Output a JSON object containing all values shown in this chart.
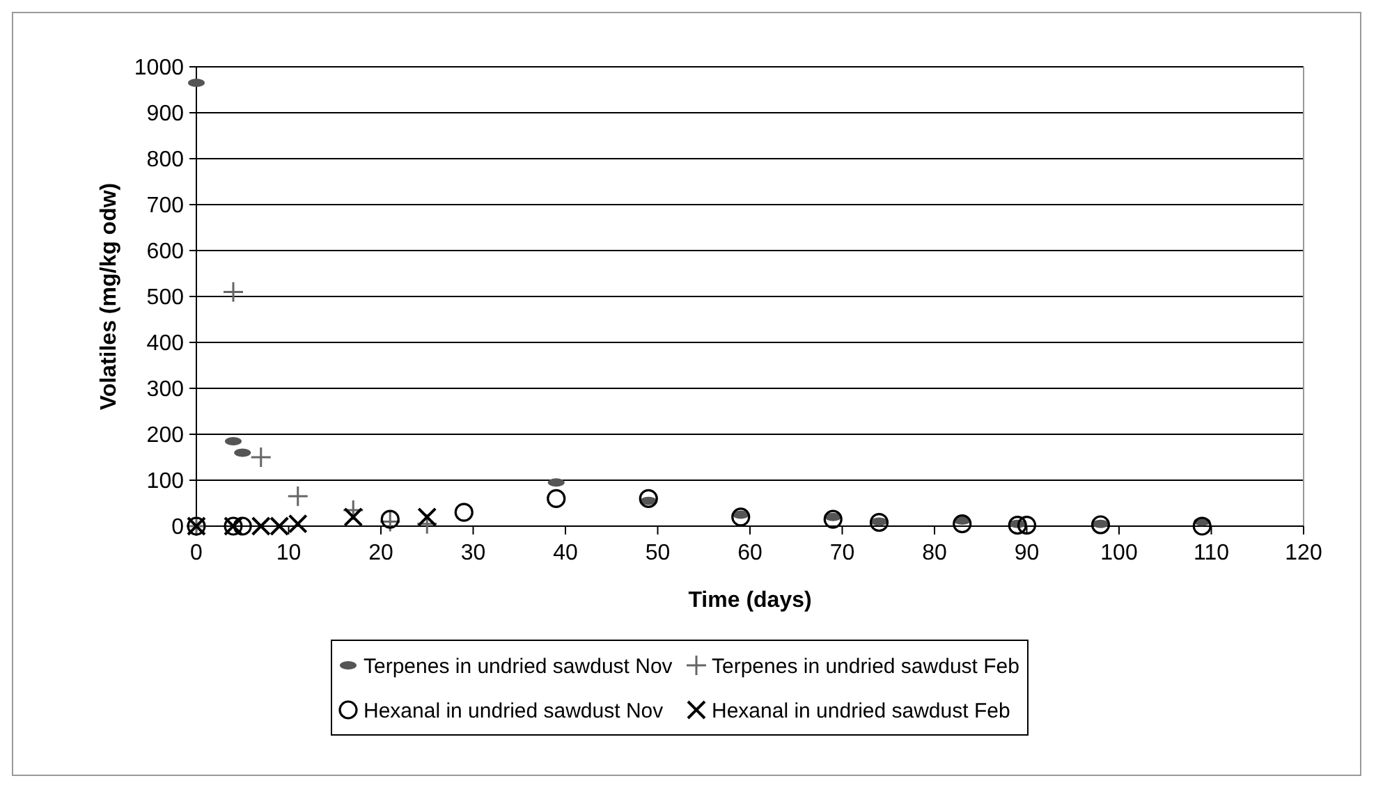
{
  "chart_data": {
    "type": "scatter",
    "xlabel": "Time (days)",
    "ylabel": "Volatiles (mg/kg odw)",
    "xlim": [
      0,
      120
    ],
    "xticks": [
      0,
      10,
      20,
      30,
      40,
      50,
      60,
      70,
      80,
      90,
      100,
      110,
      120
    ],
    "ylim": [
      0,
      1000
    ],
    "yticks": [
      0,
      100,
      200,
      300,
      400,
      500,
      600,
      700,
      800,
      900,
      1000
    ],
    "grid": "y",
    "legend": "bottom",
    "series": [
      {
        "name": "Terpenes in undried sawdust Nov",
        "color": "#555555",
        "x": [
          0,
          4,
          5,
          39,
          49,
          59,
          69,
          74,
          83,
          89,
          98,
          109
        ],
        "values": [
          965,
          185,
          160,
          95,
          55,
          25,
          20,
          10,
          12,
          5,
          5,
          10
        ]
      },
      {
        "name": "Terpenes in undried sawdust Feb",
        "color": "#666666",
        "marker": "cross",
        "x": [
          0,
          4,
          7,
          11,
          17,
          21,
          25
        ],
        "values": [
          0,
          510,
          150,
          65,
          35,
          10,
          5
        ]
      },
      {
        "name": "Hexanal in undried sawdust Nov",
        "color": "#000000",
        "marker": "circle",
        "x": [
          0,
          4,
          5,
          21,
          29,
          39,
          49,
          59,
          69,
          74,
          83,
          89,
          90,
          98,
          109
        ],
        "values": [
          0,
          0,
          0,
          15,
          30,
          60,
          60,
          20,
          15,
          8,
          5,
          2,
          2,
          3,
          0
        ]
      },
      {
        "name": "Hexanal in undried sawdust Feb",
        "color": "#000000",
        "marker": "x",
        "x": [
          0,
          4,
          7,
          9,
          11,
          17,
          25
        ],
        "values": [
          0,
          0,
          0,
          0,
          5,
          20,
          20
        ]
      }
    ]
  }
}
